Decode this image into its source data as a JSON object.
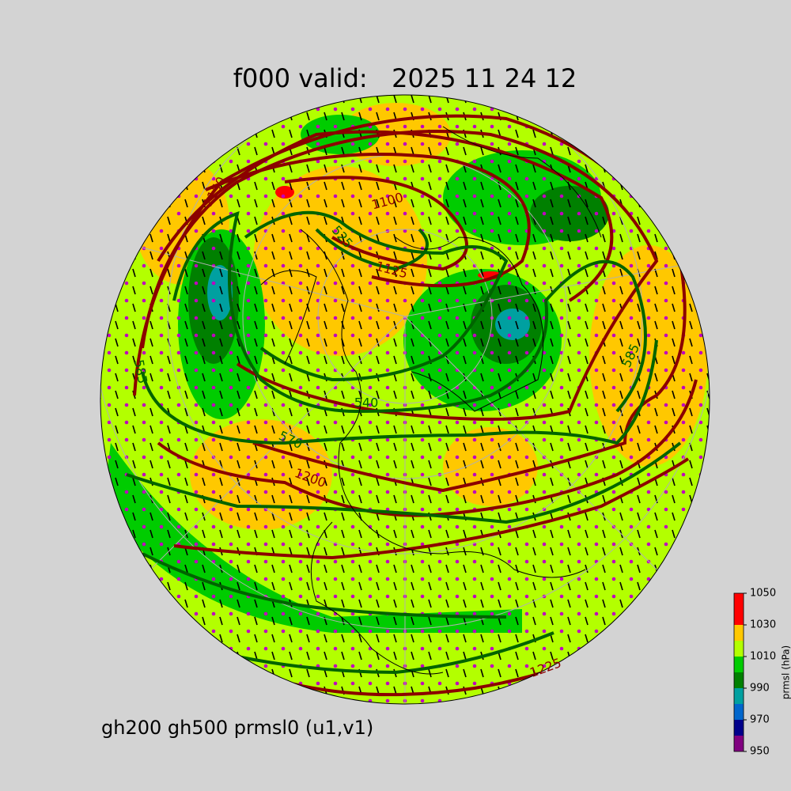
{
  "header": {
    "title": "f000 valid:   2025 11 24 12"
  },
  "footer": {
    "text": "gh200 gh500 prmsl0 (u1,v1)"
  },
  "colorbar": {
    "label": "prmsl (hPa)",
    "bounds": [
      950,
      960,
      970,
      980,
      990,
      1000,
      1010,
      1020,
      1030,
      1040,
      1050
    ],
    "colors": [
      "#800080",
      "#00008b",
      "#0066cc",
      "#00a0a0",
      "#008000",
      "#00cc00",
      "#b3ff00",
      "#ffc800",
      "#ff0000",
      "#ff0000"
    ],
    "ticks": [
      950,
      970,
      990,
      1010,
      1030,
      1050
    ]
  },
  "contour_labels": [
    {
      "label": "1100",
      "color": "#8b0000"
    },
    {
      "label": "1125",
      "color": "#8b0000"
    },
    {
      "label": "1150",
      "color": "#8b0000"
    },
    {
      "label": "1200",
      "color": "#8b0000"
    },
    {
      "label": "1225",
      "color": "#8b0000"
    },
    {
      "label": "525",
      "color": "#006400"
    },
    {
      "label": "540",
      "color": "#006400"
    },
    {
      "label": "570",
      "color": "#006400"
    },
    {
      "label": "585",
      "color": "#006400"
    },
    {
      "label": "585",
      "color": "#006400"
    }
  ]
}
